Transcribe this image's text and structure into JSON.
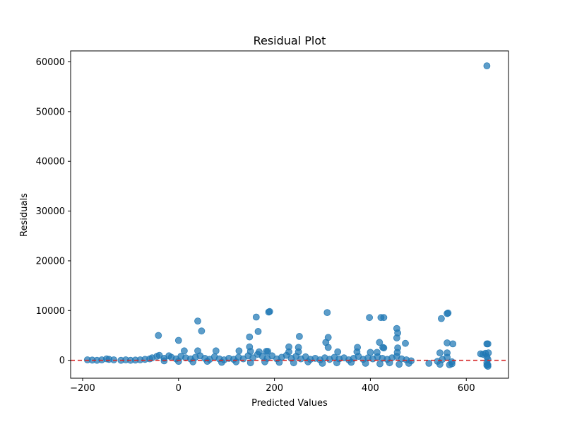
{
  "chart_data": {
    "type": "scatter",
    "title": "Residual Plot",
    "xlabel": "Predicted Values",
    "ylabel": "Residuals",
    "xlim": [
      -225,
      688
    ],
    "ylim": [
      -3600,
      62200
    ],
    "x_ticks": [
      -200,
      0,
      200,
      400,
      600
    ],
    "y_ticks": [
      0,
      10000,
      20000,
      30000,
      40000,
      50000,
      60000
    ],
    "x_tick_labels": [
      "−200",
      "0",
      "200",
      "400",
      "600"
    ],
    "y_tick_labels": [
      "0",
      "10000",
      "20000",
      "30000",
      "40000",
      "50000",
      "60000"
    ],
    "grid": false,
    "reference_line": {
      "y": 0,
      "color": "#d62728",
      "style": "dashed"
    },
    "marker_color": "#1f77b4",
    "series": [
      {
        "points": [
          [
            643,
            59200
          ],
          [
            190,
            9800
          ],
          [
            188,
            9700
          ],
          [
            310,
            9600
          ],
          [
            562,
            9500
          ],
          [
            560,
            9400
          ],
          [
            162,
            8700
          ],
          [
            398,
            8600
          ],
          [
            422,
            8600
          ],
          [
            428,
            8600
          ],
          [
            548,
            8400
          ],
          [
            40,
            7900
          ],
          [
            166,
            5800
          ],
          [
            48,
            5900
          ],
          [
            455,
            6400
          ],
          [
            457,
            5500
          ],
          [
            -42,
            5000
          ],
          [
            148,
            4700
          ],
          [
            252,
            4800
          ],
          [
            312,
            4600
          ],
          [
            455,
            4500
          ],
          [
            0,
            4000
          ],
          [
            307,
            3600
          ],
          [
            419,
            3600
          ],
          [
            560,
            3500
          ],
          [
            473,
            3400
          ],
          [
            572,
            3300
          ],
          [
            643,
            3300
          ],
          [
            645,
            3300
          ],
          [
            148,
            2700
          ],
          [
            230,
            2700
          ],
          [
            250,
            2600
          ],
          [
            312,
            2600
          ],
          [
            373,
            2600
          ],
          [
            426,
            2600
          ],
          [
            428,
            2500
          ],
          [
            457,
            2500
          ],
          [
            12,
            1900
          ],
          [
            40,
            1900
          ],
          [
            78,
            1900
          ],
          [
            126,
            1900
          ],
          [
            150,
            1800
          ],
          [
            168,
            1700
          ],
          [
            183,
            1800
          ],
          [
            186,
            1800
          ],
          [
            230,
            1700
          ],
          [
            250,
            1700
          ],
          [
            332,
            1700
          ],
          [
            372,
            1700
          ],
          [
            400,
            1600
          ],
          [
            414,
            1600
          ],
          [
            456,
            1600
          ],
          [
            545,
            1500
          ],
          [
            560,
            1500
          ],
          [
            630,
            1300
          ],
          [
            640,
            1400
          ],
          [
            646,
            1500
          ],
          [
            -190,
            100
          ],
          [
            -180,
            50
          ],
          [
            -170,
            0
          ],
          [
            -160,
            100
          ],
          [
            -150,
            300
          ],
          [
            -145,
            200
          ],
          [
            -135,
            100
          ],
          [
            -120,
            0
          ],
          [
            -110,
            100
          ],
          [
            -100,
            0
          ],
          [
            -90,
            50
          ],
          [
            -80,
            100
          ],
          [
            -70,
            200
          ],
          [
            -60,
            300
          ],
          [
            -55,
            500
          ],
          [
            -45,
            800
          ],
          [
            -40,
            1000
          ],
          [
            -30,
            400
          ],
          [
            -20,
            900
          ],
          [
            -15,
            600
          ],
          [
            -5,
            300
          ],
          [
            5,
            800
          ],
          [
            15,
            500
          ],
          [
            25,
            300
          ],
          [
            35,
            600
          ],
          [
            45,
            900
          ],
          [
            55,
            400
          ],
          [
            65,
            200
          ],
          [
            75,
            700
          ],
          [
            85,
            300
          ],
          [
            95,
            100
          ],
          [
            105,
            400
          ],
          [
            115,
            200
          ],
          [
            125,
            600
          ],
          [
            135,
            300
          ],
          [
            145,
            900
          ],
          [
            155,
            500
          ],
          [
            165,
            1200
          ],
          [
            175,
            800
          ],
          [
            185,
            400
          ],
          [
            195,
            900
          ],
          [
            205,
            300
          ],
          [
            215,
            600
          ],
          [
            225,
            1000
          ],
          [
            235,
            400
          ],
          [
            245,
            800
          ],
          [
            255,
            300
          ],
          [
            265,
            700
          ],
          [
            275,
            200
          ],
          [
            285,
            400
          ],
          [
            295,
            100
          ],
          [
            305,
            500
          ],
          [
            315,
            200
          ],
          [
            325,
            600
          ],
          [
            335,
            300
          ],
          [
            345,
            500
          ],
          [
            355,
            100
          ],
          [
            365,
            400
          ],
          [
            375,
            800
          ],
          [
            385,
            200
          ],
          [
            395,
            500
          ],
          [
            405,
            300
          ],
          [
            415,
            700
          ],
          [
            425,
            400
          ],
          [
            435,
            200
          ],
          [
            445,
            500
          ],
          [
            455,
            800
          ],
          [
            465,
            300
          ],
          [
            475,
            100
          ],
          [
            485,
            -100
          ],
          [
            522,
            -600
          ],
          [
            540,
            -200
          ],
          [
            550,
            200
          ],
          [
            560,
            600
          ],
          [
            570,
            -300
          ],
          [
            635,
            1200
          ],
          [
            643,
            -500
          ],
          [
            645,
            -900
          ],
          [
            643,
            700
          ],
          [
            645,
            200
          ],
          [
            -30,
            -100
          ],
          [
            0,
            -200
          ],
          [
            30,
            -300
          ],
          [
            60,
            -200
          ],
          [
            90,
            -400
          ],
          [
            120,
            -300
          ],
          [
            150,
            -500
          ],
          [
            180,
            -300
          ],
          [
            210,
            -400
          ],
          [
            240,
            -500
          ],
          [
            270,
            -300
          ],
          [
            300,
            -600
          ],
          [
            330,
            -500
          ],
          [
            360,
            -400
          ],
          [
            390,
            -600
          ],
          [
            420,
            -700
          ],
          [
            440,
            -500
          ],
          [
            460,
            -800
          ],
          [
            480,
            -600
          ],
          [
            545,
            -800
          ],
          [
            565,
            -900
          ],
          [
            570,
            -700
          ],
          [
            645,
            -1200
          ],
          [
            643,
            -1000
          ]
        ]
      }
    ]
  }
}
